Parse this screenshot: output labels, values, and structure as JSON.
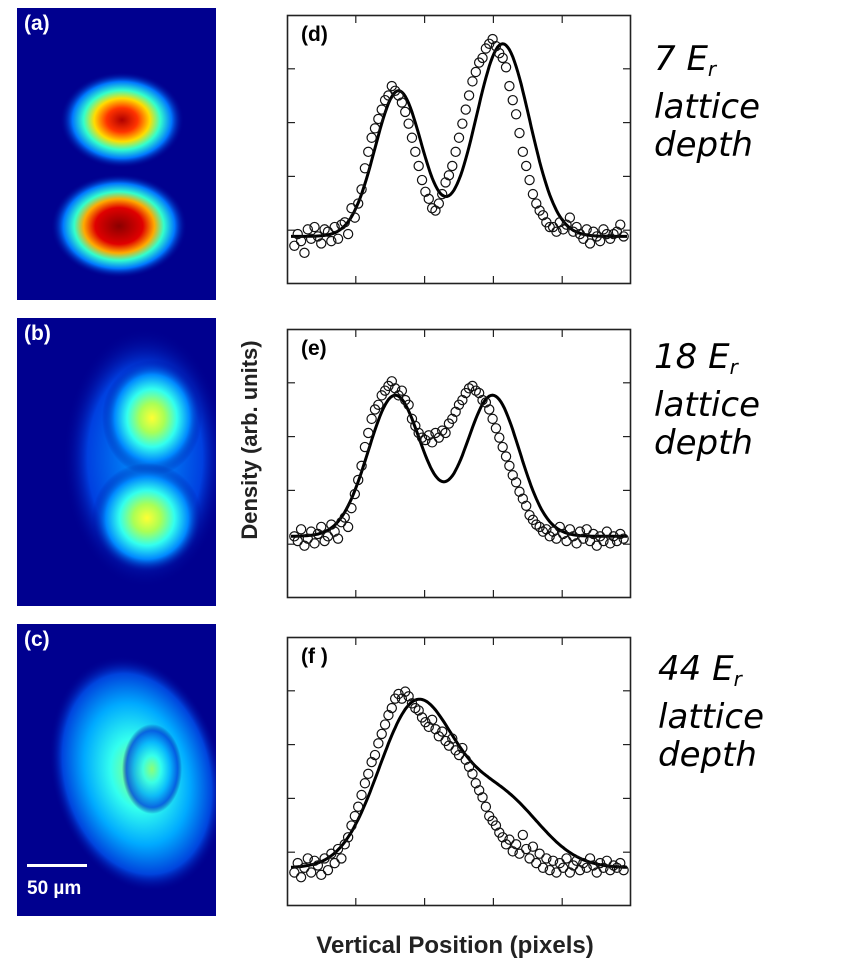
{
  "image_panels": [
    {
      "label": "(a)"
    },
    {
      "label": "(b)"
    },
    {
      "label": "(c)",
      "scale_bar": "50 µm"
    }
  ],
  "depth_labels": [
    {
      "prefix": "7 E",
      "sub": "r",
      "suffix": "lattice depth"
    },
    {
      "prefix": "18 E",
      "sub": "r",
      "suffix": "lattice depth"
    },
    {
      "prefix": "44 E",
      "sub": "r",
      "suffix": "lattice depth"
    }
  ],
  "chart_data": [
    {
      "type": "scatter",
      "label": "(d)",
      "xlabel": "Vertical Position (pixels)",
      "ylabel": "Density (arb. units)",
      "xlim": [
        0,
        100
      ],
      "ylim": [
        0,
        1
      ],
      "fit": {
        "baseline": 0.16,
        "peaks": [
          {
            "center": 32,
            "amp": 0.62,
            "width": 7
          },
          {
            "center": 63,
            "amp": 0.82,
            "width": 8
          }
        ]
      },
      "points": [
        [
          1,
          0.12
        ],
        [
          2,
          0.17
        ],
        [
          3,
          0.14
        ],
        [
          4,
          0.09
        ],
        [
          5,
          0.19
        ],
        [
          6,
          0.15
        ],
        [
          7,
          0.2
        ],
        [
          8,
          0.16
        ],
        [
          9,
          0.13
        ],
        [
          10,
          0.19
        ],
        [
          11,
          0.18
        ],
        [
          12,
          0.14
        ],
        [
          13,
          0.2
        ],
        [
          14,
          0.15
        ],
        [
          15,
          0.21
        ],
        [
          16,
          0.22
        ],
        [
          17,
          0.17
        ],
        [
          18,
          0.28
        ],
        [
          19,
          0.24
        ],
        [
          20,
          0.3
        ],
        [
          21,
          0.36
        ],
        [
          22,
          0.45
        ],
        [
          23,
          0.52
        ],
        [
          24,
          0.58
        ],
        [
          25,
          0.62
        ],
        [
          26,
          0.66
        ],
        [
          27,
          0.7
        ],
        [
          28,
          0.74
        ],
        [
          29,
          0.76
        ],
        [
          30,
          0.8
        ],
        [
          31,
          0.78
        ],
        [
          32,
          0.76
        ],
        [
          33,
          0.73
        ],
        [
          34,
          0.69
        ],
        [
          35,
          0.64
        ],
        [
          36,
          0.58
        ],
        [
          37,
          0.52
        ],
        [
          38,
          0.46
        ],
        [
          39,
          0.4
        ],
        [
          40,
          0.35
        ],
        [
          41,
          0.32
        ],
        [
          42,
          0.28
        ],
        [
          43,
          0.27
        ],
        [
          44,
          0.3
        ],
        [
          45,
          0.34
        ],
        [
          46,
          0.39
        ],
        [
          47,
          0.42
        ],
        [
          48,
          0.46
        ],
        [
          49,
          0.52
        ],
        [
          50,
          0.58
        ],
        [
          51,
          0.64
        ],
        [
          52,
          0.7
        ],
        [
          53,
          0.76
        ],
        [
          54,
          0.82
        ],
        [
          55,
          0.86
        ],
        [
          56,
          0.9
        ],
        [
          57,
          0.92
        ],
        [
          58,
          0.96
        ],
        [
          59,
          0.98
        ],
        [
          60,
          1.0
        ],
        [
          61,
          0.97
        ],
        [
          62,
          0.94
        ],
        [
          63,
          0.92
        ],
        [
          64,
          0.88
        ],
        [
          65,
          0.8
        ],
        [
          66,
          0.74
        ],
        [
          67,
          0.68
        ],
        [
          68,
          0.6
        ],
        [
          69,
          0.52
        ],
        [
          70,
          0.46
        ],
        [
          71,
          0.4
        ],
        [
          72,
          0.34
        ],
        [
          73,
          0.3
        ],
        [
          74,
          0.27
        ],
        [
          75,
          0.25
        ],
        [
          76,
          0.22
        ],
        [
          77,
          0.2
        ],
        [
          78,
          0.2
        ],
        [
          79,
          0.18
        ],
        [
          80,
          0.22
        ],
        [
          81,
          0.19
        ],
        [
          82,
          0.21
        ],
        [
          83,
          0.24
        ],
        [
          84,
          0.18
        ],
        [
          85,
          0.2
        ],
        [
          86,
          0.17
        ],
        [
          87,
          0.15
        ],
        [
          88,
          0.19
        ],
        [
          89,
          0.13
        ],
        [
          90,
          0.18
        ],
        [
          91,
          0.16
        ],
        [
          92,
          0.14
        ],
        [
          93,
          0.19
        ],
        [
          94,
          0.17
        ],
        [
          95,
          0.15
        ],
        [
          96,
          0.17
        ],
        [
          97,
          0.18
        ],
        [
          98,
          0.21
        ],
        [
          99,
          0.16
        ]
      ]
    },
    {
      "type": "scatter",
      "label": "(e)",
      "xlim": [
        0,
        100
      ],
      "ylim": [
        0,
        1
      ],
      "fit": {
        "baseline": 0.22,
        "peaks": [
          {
            "center": 31,
            "amp": 0.6,
            "width": 8
          },
          {
            "center": 60,
            "amp": 0.6,
            "width": 8
          }
        ]
      },
      "points": [
        [
          1,
          0.22
        ],
        [
          2,
          0.2
        ],
        [
          3,
          0.25
        ],
        [
          4,
          0.18
        ],
        [
          5,
          0.21
        ],
        [
          6,
          0.24
        ],
        [
          7,
          0.19
        ],
        [
          8,
          0.23
        ],
        [
          9,
          0.26
        ],
        [
          10,
          0.2
        ],
        [
          11,
          0.22
        ],
        [
          12,
          0.27
        ],
        [
          13,
          0.24
        ],
        [
          14,
          0.21
        ],
        [
          15,
          0.28
        ],
        [
          16,
          0.3
        ],
        [
          17,
          0.26
        ],
        [
          18,
          0.34
        ],
        [
          19,
          0.4
        ],
        [
          20,
          0.46
        ],
        [
          21,
          0.52
        ],
        [
          22,
          0.6
        ],
        [
          23,
          0.66
        ],
        [
          24,
          0.72
        ],
        [
          25,
          0.76
        ],
        [
          26,
          0.78
        ],
        [
          27,
          0.82
        ],
        [
          28,
          0.84
        ],
        [
          29,
          0.86
        ],
        [
          30,
          0.88
        ],
        [
          31,
          0.85
        ],
        [
          32,
          0.82
        ],
        [
          33,
          0.84
        ],
        [
          34,
          0.8
        ],
        [
          35,
          0.78
        ],
        [
          36,
          0.72
        ],
        [
          37,
          0.69
        ],
        [
          38,
          0.66
        ],
        [
          39,
          0.64
        ],
        [
          40,
          0.63
        ],
        [
          41,
          0.65
        ],
        [
          42,
          0.62
        ],
        [
          43,
          0.66
        ],
        [
          44,
          0.64
        ],
        [
          45,
          0.67
        ],
        [
          46,
          0.66
        ],
        [
          47,
          0.7
        ],
        [
          48,
          0.72
        ],
        [
          49,
          0.75
        ],
        [
          50,
          0.78
        ],
        [
          51,
          0.8
        ],
        [
          52,
          0.83
        ],
        [
          53,
          0.85
        ],
        [
          54,
          0.86
        ],
        [
          55,
          0.84
        ],
        [
          56,
          0.83
        ],
        [
          57,
          0.8
        ],
        [
          58,
          0.79
        ],
        [
          59,
          0.76
        ],
        [
          60,
          0.72
        ],
        [
          61,
          0.68
        ],
        [
          62,
          0.64
        ],
        [
          63,
          0.6
        ],
        [
          64,
          0.56
        ],
        [
          65,
          0.52
        ],
        [
          66,
          0.48
        ],
        [
          67,
          0.45
        ],
        [
          68,
          0.41
        ],
        [
          69,
          0.38
        ],
        [
          70,
          0.35
        ],
        [
          71,
          0.31
        ],
        [
          72,
          0.29
        ],
        [
          73,
          0.27
        ],
        [
          74,
          0.26
        ],
        [
          75,
          0.24
        ],
        [
          76,
          0.25
        ],
        [
          77,
          0.22
        ],
        [
          78,
          0.24
        ],
        [
          79,
          0.21
        ],
        [
          80,
          0.26
        ],
        [
          81,
          0.23
        ],
        [
          82,
          0.2
        ],
        [
          83,
          0.25
        ],
        [
          84,
          0.22
        ],
        [
          85,
          0.19
        ],
        [
          86,
          0.24
        ],
        [
          87,
          0.21
        ],
        [
          88,
          0.25
        ],
        [
          89,
          0.2
        ],
        [
          90,
          0.23
        ],
        [
          91,
          0.18
        ],
        [
          92,
          0.22
        ],
        [
          93,
          0.2
        ],
        [
          94,
          0.24
        ],
        [
          95,
          0.19
        ],
        [
          96,
          0.22
        ],
        [
          97,
          0.2
        ],
        [
          98,
          0.23
        ],
        [
          99,
          0.21
        ]
      ]
    },
    {
      "type": "scatter",
      "label": "(f )",
      "xlim": [
        0,
        100
      ],
      "ylim": [
        0,
        1
      ],
      "fit": {
        "baseline": 0.12,
        "peaks": [
          {
            "center": 37,
            "amp": 0.68,
            "width": 11
          },
          {
            "center": 62,
            "amp": 0.3,
            "width": 12
          }
        ]
      },
      "points": [
        [
          1,
          0.1
        ],
        [
          2,
          0.14
        ],
        [
          3,
          0.08
        ],
        [
          4,
          0.12
        ],
        [
          5,
          0.16
        ],
        [
          6,
          0.1
        ],
        [
          7,
          0.15
        ],
        [
          8,
          0.13
        ],
        [
          9,
          0.09
        ],
        [
          10,
          0.16
        ],
        [
          11,
          0.11
        ],
        [
          12,
          0.18
        ],
        [
          13,
          0.14
        ],
        [
          14,
          0.2
        ],
        [
          15,
          0.16
        ],
        [
          16,
          0.22
        ],
        [
          17,
          0.25
        ],
        [
          18,
          0.3
        ],
        [
          19,
          0.34
        ],
        [
          20,
          0.38
        ],
        [
          21,
          0.43
        ],
        [
          22,
          0.48
        ],
        [
          23,
          0.52
        ],
        [
          24,
          0.57
        ],
        [
          25,
          0.6
        ],
        [
          26,
          0.65
        ],
        [
          27,
          0.69
        ],
        [
          28,
          0.73
        ],
        [
          29,
          0.77
        ],
        [
          30,
          0.8
        ],
        [
          31,
          0.84
        ],
        [
          32,
          0.86
        ],
        [
          33,
          0.84
        ],
        [
          34,
          0.87
        ],
        [
          35,
          0.85
        ],
        [
          36,
          0.82
        ],
        [
          37,
          0.8
        ],
        [
          38,
          0.79
        ],
        [
          39,
          0.76
        ],
        [
          40,
          0.74
        ],
        [
          41,
          0.72
        ],
        [
          42,
          0.75
        ],
        [
          43,
          0.71
        ],
        [
          44,
          0.68
        ],
        [
          45,
          0.7
        ],
        [
          46,
          0.66
        ],
        [
          47,
          0.64
        ],
        [
          48,
          0.67
        ],
        [
          49,
          0.62
        ],
        [
          50,
          0.6
        ],
        [
          51,
          0.63
        ],
        [
          52,
          0.58
        ],
        [
          53,
          0.55
        ],
        [
          54,
          0.52
        ],
        [
          55,
          0.48
        ],
        [
          56,
          0.45
        ],
        [
          57,
          0.42
        ],
        [
          58,
          0.38
        ],
        [
          59,
          0.34
        ],
        [
          60,
          0.32
        ],
        [
          61,
          0.3
        ],
        [
          62,
          0.27
        ],
        [
          63,
          0.25
        ],
        [
          64,
          0.22
        ],
        [
          65,
          0.24
        ],
        [
          66,
          0.19
        ],
        [
          67,
          0.22
        ],
        [
          68,
          0.18
        ],
        [
          69,
          0.26
        ],
        [
          70,
          0.2
        ],
        [
          71,
          0.16
        ],
        [
          72,
          0.21
        ],
        [
          73,
          0.14
        ],
        [
          74,
          0.18
        ],
        [
          75,
          0.12
        ],
        [
          76,
          0.16
        ],
        [
          77,
          0.11
        ],
        [
          78,
          0.15
        ],
        [
          79,
          0.1
        ],
        [
          80,
          0.14
        ],
        [
          81,
          0.12
        ],
        [
          82,
          0.16
        ],
        [
          83,
          0.1
        ],
        [
          84,
          0.13
        ],
        [
          85,
          0.15
        ],
        [
          86,
          0.11
        ],
        [
          87,
          0.14
        ],
        [
          88,
          0.12
        ],
        [
          89,
          0.16
        ],
        [
          90,
          0.13
        ],
        [
          91,
          0.1
        ],
        [
          92,
          0.14
        ],
        [
          93,
          0.12
        ],
        [
          94,
          0.15
        ],
        [
          95,
          0.11
        ],
        [
          96,
          0.13
        ],
        [
          97,
          0.12
        ],
        [
          98,
          0.14
        ],
        [
          99,
          0.11
        ]
      ]
    }
  ]
}
